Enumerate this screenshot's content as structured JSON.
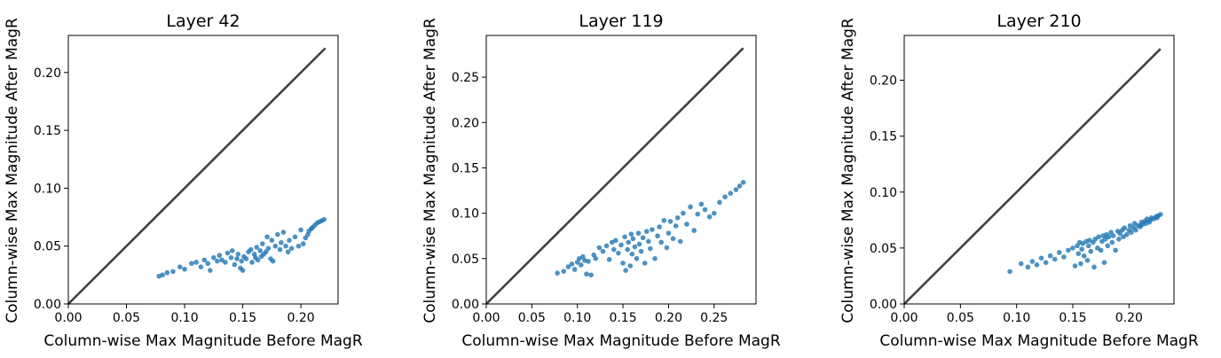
{
  "chart_data": [
    {
      "type": "scatter",
      "title": "Layer 42",
      "xlabel": "Column-wise Max Magnitude Before MagR",
      "ylabel": "Column-wise Max Magnitude After MagR",
      "xlim": [
        0,
        0.232
      ],
      "ylim": [
        0,
        0.232
      ],
      "xticks": [
        "0.00",
        "0.05",
        "0.10",
        "0.15",
        "0.20"
      ],
      "yticks": [
        "0.00",
        "0.05",
        "0.10",
        "0.15",
        "0.20"
      ],
      "diagonal": [
        [
          0,
          0
        ],
        [
          0.221,
          0.221
        ]
      ],
      "point_color": "#1f77b4",
      "line_color": "#404040",
      "grid": false,
      "x": [
        0.078,
        0.081,
        0.085,
        0.09,
        0.096,
        0.1,
        0.106,
        0.11,
        0.114,
        0.117,
        0.12,
        0.122,
        0.125,
        0.128,
        0.13,
        0.132,
        0.135,
        0.137,
        0.14,
        0.141,
        0.143,
        0.145,
        0.146,
        0.148,
        0.149,
        0.15,
        0.151,
        0.153,
        0.155,
        0.157,
        0.158,
        0.16,
        0.161,
        0.162,
        0.163,
        0.165,
        0.166,
        0.167,
        0.168,
        0.17,
        0.171,
        0.172,
        0.174,
        0.175,
        0.176,
        0.178,
        0.18,
        0.182,
        0.183,
        0.185,
        0.187,
        0.189,
        0.19,
        0.192,
        0.195,
        0.198,
        0.2,
        0.202,
        0.204,
        0.206,
        0.207,
        0.209,
        0.21,
        0.212,
        0.214,
        0.216,
        0.218,
        0.22
      ],
      "y": [
        0.024,
        0.025,
        0.027,
        0.028,
        0.032,
        0.03,
        0.035,
        0.036,
        0.032,
        0.038,
        0.035,
        0.029,
        0.04,
        0.037,
        0.042,
        0.038,
        0.036,
        0.044,
        0.04,
        0.046,
        0.034,
        0.039,
        0.043,
        0.031,
        0.037,
        0.029,
        0.041,
        0.039,
        0.045,
        0.047,
        0.036,
        0.043,
        0.04,
        0.049,
        0.038,
        0.046,
        0.041,
        0.052,
        0.043,
        0.045,
        0.058,
        0.048,
        0.039,
        0.055,
        0.037,
        0.05,
        0.06,
        0.047,
        0.053,
        0.062,
        0.05,
        0.045,
        0.055,
        0.048,
        0.058,
        0.05,
        0.064,
        0.052,
        0.057,
        0.06,
        0.063,
        0.065,
        0.066,
        0.068,
        0.07,
        0.071,
        0.072,
        0.073
      ]
    },
    {
      "type": "scatter",
      "title": "Layer 119",
      "xlabel": "Column-wise Max Magnitude Before MagR",
      "ylabel": "Column-wise Max Magnitude After MagR",
      "xlim": [
        0,
        0.296
      ],
      "ylim": [
        0,
        0.296
      ],
      "xticks": [
        "0.00",
        "0.05",
        "0.10",
        "0.15",
        "0.20",
        "0.25"
      ],
      "yticks": [
        "0.00",
        "0.05",
        "0.10",
        "0.15",
        "0.20",
        "0.25"
      ],
      "diagonal": [
        [
          0,
          0
        ],
        [
          0.282,
          0.282
        ]
      ],
      "point_color": "#1f77b4",
      "line_color": "#404040",
      "grid": false,
      "x": [
        0.078,
        0.085,
        0.09,
        0.094,
        0.097,
        0.1,
        0.102,
        0.104,
        0.106,
        0.108,
        0.11,
        0.112,
        0.115,
        0.118,
        0.12,
        0.124,
        0.128,
        0.132,
        0.135,
        0.138,
        0.14,
        0.142,
        0.145,
        0.148,
        0.15,
        0.152,
        0.153,
        0.155,
        0.156,
        0.158,
        0.159,
        0.16,
        0.161,
        0.163,
        0.165,
        0.167,
        0.168,
        0.17,
        0.172,
        0.174,
        0.176,
        0.178,
        0.18,
        0.182,
        0.185,
        0.188,
        0.19,
        0.192,
        0.195,
        0.198,
        0.2,
        0.202,
        0.205,
        0.208,
        0.21,
        0.213,
        0.216,
        0.22,
        0.224,
        0.228,
        0.232,
        0.236,
        0.24,
        0.245,
        0.25,
        0.256,
        0.262,
        0.268,
        0.274,
        0.278,
        0.282
      ],
      "y": [
        0.034,
        0.036,
        0.041,
        0.044,
        0.038,
        0.046,
        0.05,
        0.043,
        0.052,
        0.048,
        0.033,
        0.047,
        0.032,
        0.054,
        0.05,
        0.062,
        0.058,
        0.064,
        0.049,
        0.068,
        0.06,
        0.07,
        0.056,
        0.065,
        0.045,
        0.074,
        0.037,
        0.06,
        0.068,
        0.042,
        0.077,
        0.055,
        0.072,
        0.063,
        0.05,
        0.078,
        0.066,
        0.058,
        0.073,
        0.045,
        0.08,
        0.069,
        0.061,
        0.082,
        0.05,
        0.075,
        0.085,
        0.068,
        0.092,
        0.062,
        0.078,
        0.091,
        0.072,
        0.086,
        0.095,
        0.069,
        0.1,
        0.088,
        0.107,
        0.081,
        0.099,
        0.11,
        0.104,
        0.096,
        0.1,
        0.112,
        0.118,
        0.122,
        0.126,
        0.13,
        0.134
      ]
    },
    {
      "type": "scatter",
      "title": "Layer 210",
      "xlabel": "Column-wise Max Magnitude Before MagR",
      "ylabel": "Column-wise Max Magnitude After MagR",
      "xlim": [
        0,
        0.24
      ],
      "ylim": [
        0,
        0.24
      ],
      "xticks": [
        "0.00",
        "0.05",
        "0.10",
        "0.15",
        "0.20"
      ],
      "yticks": [
        "0.00",
        "0.05",
        "0.10",
        "0.15",
        "0.20"
      ],
      "diagonal": [
        [
          0,
          0
        ],
        [
          0.228,
          0.228
        ]
      ],
      "point_color": "#1f77b4",
      "line_color": "#404040",
      "grid": false,
      "x": [
        0.094,
        0.104,
        0.11,
        0.114,
        0.118,
        0.122,
        0.126,
        0.13,
        0.134,
        0.138,
        0.142,
        0.146,
        0.15,
        0.152,
        0.154,
        0.155,
        0.156,
        0.157,
        0.158,
        0.159,
        0.16,
        0.162,
        0.163,
        0.164,
        0.165,
        0.166,
        0.168,
        0.169,
        0.17,
        0.172,
        0.173,
        0.175,
        0.176,
        0.177,
        0.178,
        0.179,
        0.18,
        0.181,
        0.182,
        0.184,
        0.185,
        0.186,
        0.188,
        0.19,
        0.191,
        0.192,
        0.194,
        0.195,
        0.196,
        0.198,
        0.2,
        0.201,
        0.202,
        0.204,
        0.205,
        0.206,
        0.208,
        0.21,
        0.211,
        0.212,
        0.214,
        0.215,
        0.216,
        0.218,
        0.219,
        0.22,
        0.222,
        0.224,
        0.225,
        0.226,
        0.228
      ],
      "y": [
        0.029,
        0.036,
        0.033,
        0.038,
        0.035,
        0.041,
        0.037,
        0.043,
        0.04,
        0.046,
        0.042,
        0.048,
        0.05,
        0.034,
        0.052,
        0.045,
        0.055,
        0.036,
        0.049,
        0.054,
        0.043,
        0.056,
        0.039,
        0.052,
        0.057,
        0.047,
        0.055,
        0.033,
        0.058,
        0.05,
        0.06,
        0.048,
        0.056,
        0.061,
        0.037,
        0.058,
        0.062,
        0.052,
        0.06,
        0.064,
        0.055,
        0.061,
        0.048,
        0.065,
        0.058,
        0.063,
        0.066,
        0.06,
        0.068,
        0.062,
        0.066,
        0.07,
        0.064,
        0.068,
        0.072,
        0.066,
        0.07,
        0.069,
        0.073,
        0.071,
        0.074,
        0.072,
        0.076,
        0.073,
        0.075,
        0.077,
        0.076,
        0.078,
        0.077,
        0.079,
        0.08
      ]
    }
  ]
}
